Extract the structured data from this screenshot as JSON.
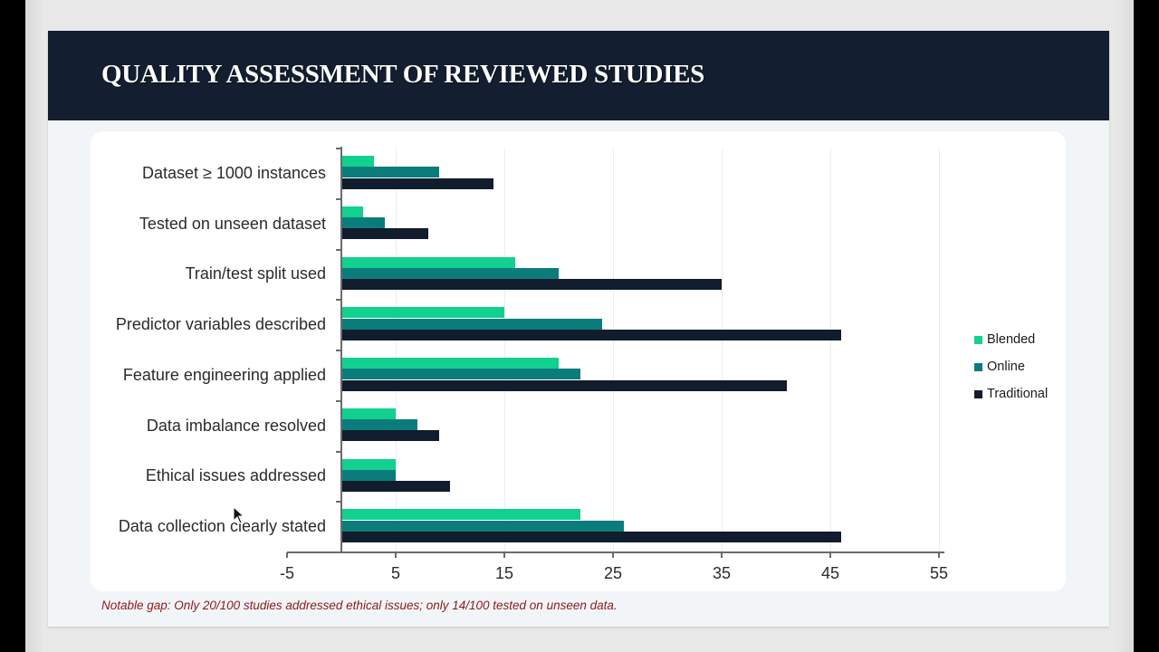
{
  "slide": {
    "title": "QUALITY ASSESSMENT OF REVIEWED STUDIES",
    "note": "Notable gap: Only 20/100 studies addressed ethical issues; only 14/100 tested on unseen data."
  },
  "colors": {
    "header_bg": "#131f30",
    "blended": "#12d08e",
    "online": "#0b7c7c",
    "traditional": "#111c2c",
    "note": "#8b1a1a"
  },
  "chart_data": {
    "type": "bar",
    "orientation": "horizontal",
    "title": "QUALITY ASSESSMENT OF REVIEWED STUDIES",
    "xlabel": "",
    "ylabel": "",
    "categories": [
      "Dataset ≥ 1000 instances",
      "Tested on unseen dataset",
      "Train/test split used",
      "Predictor variables described",
      "Feature engineering applied",
      "Data imbalance resolved",
      "Ethical issues addressed",
      "Data collection clearly stated"
    ],
    "series": [
      {
        "name": "Blended",
        "color": "#12d08e",
        "values": [
          3,
          2,
          16,
          15,
          20,
          5,
          5,
          22
        ]
      },
      {
        "name": "Online",
        "color": "#0b7c7c",
        "values": [
          9,
          4,
          20,
          24,
          22,
          7,
          5,
          26
        ]
      },
      {
        "name": "Traditional",
        "color": "#111c2c",
        "values": [
          14,
          8,
          35,
          46,
          41,
          9,
          10,
          46
        ]
      }
    ],
    "xlim": [
      -5,
      55
    ],
    "xticks": [
      "-5",
      "5",
      "15",
      "25",
      "35",
      "45",
      "55"
    ],
    "grid": "vertical",
    "legend_position": "right"
  },
  "legend": {
    "items": [
      {
        "label": "Blended"
      },
      {
        "label": "Online"
      },
      {
        "label": "Traditional"
      }
    ]
  }
}
